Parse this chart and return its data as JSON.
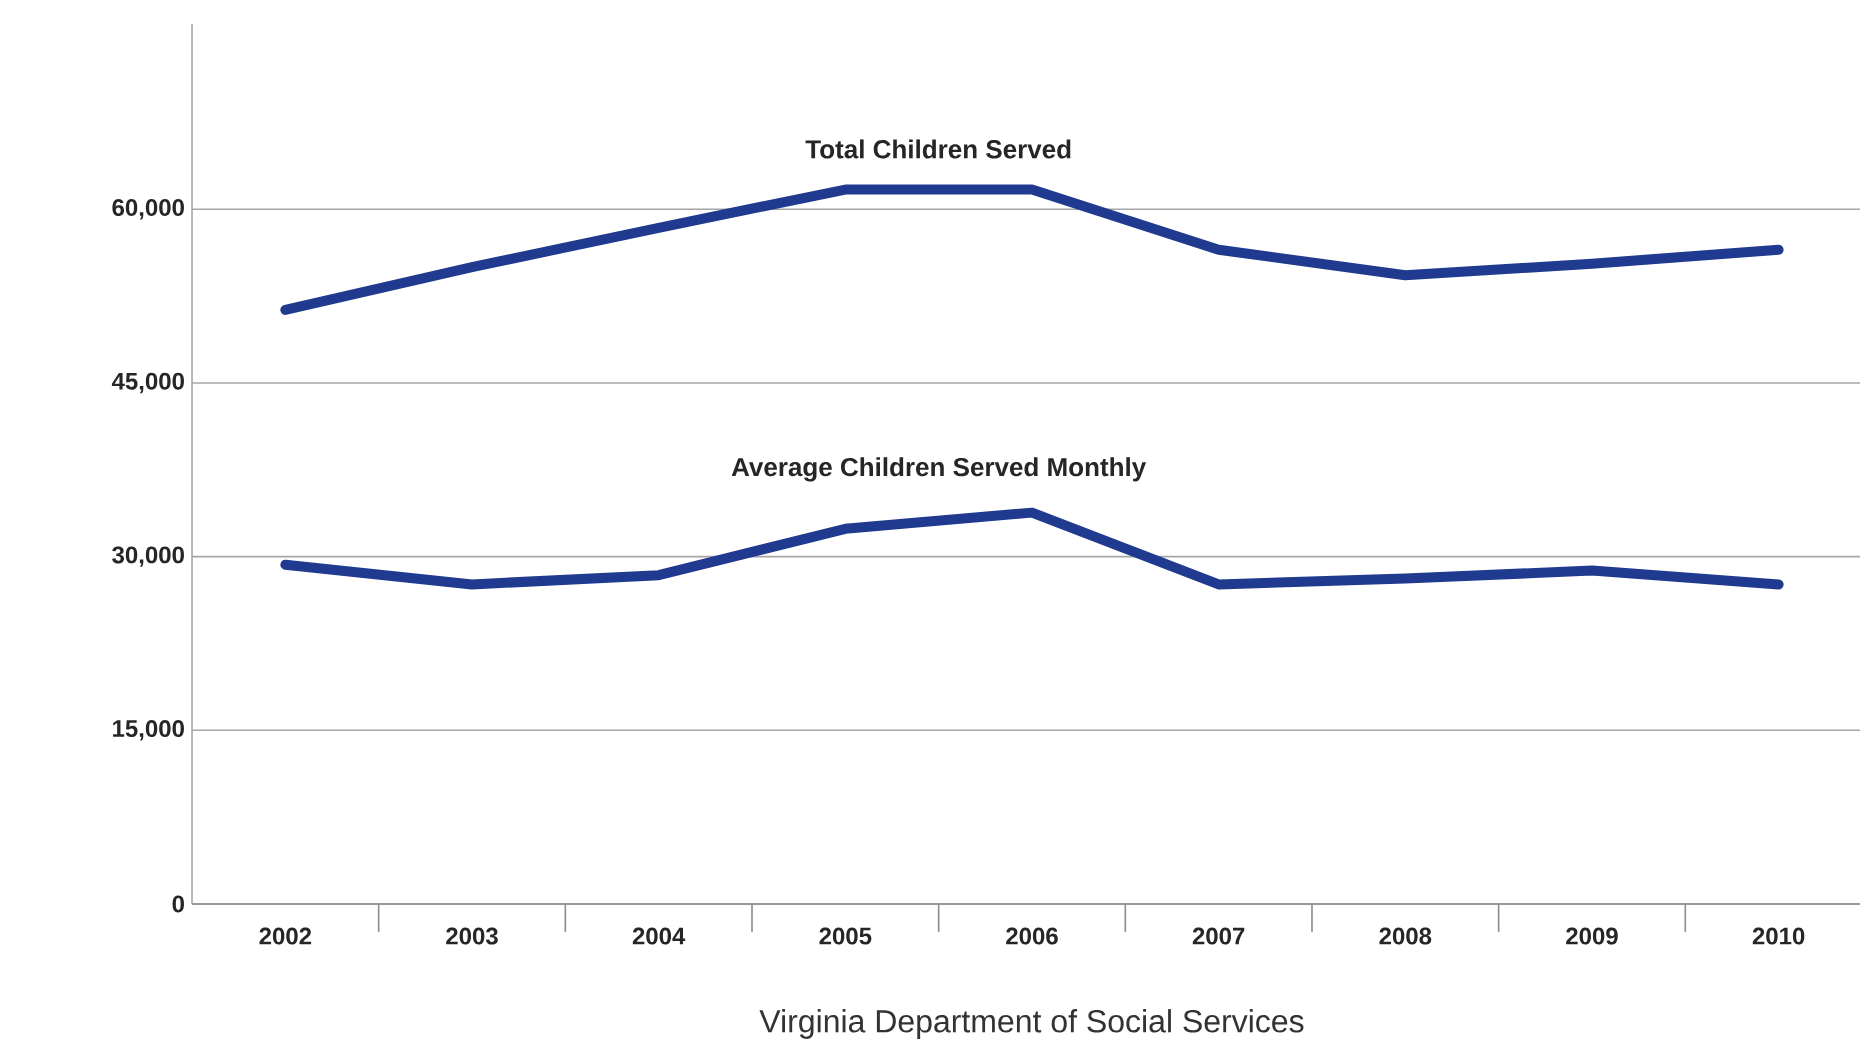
{
  "chart_data": {
    "type": "line",
    "categories": [
      "2002",
      "2003",
      "2004",
      "2005",
      "2006",
      "2007",
      "2008",
      "2009",
      "2010"
    ],
    "series": [
      {
        "name": "Total Children Served",
        "color": "#1f3a8f",
        "values": [
          51300,
          55000,
          58400,
          61700,
          61700,
          56500,
          54300,
          55300,
          56500
        ]
      },
      {
        "name": "Average Children Served Monthly",
        "color": "#1f3a8f",
        "values": [
          29300,
          27600,
          28400,
          32400,
          33800,
          27600,
          28100,
          28800,
          27600
        ]
      }
    ],
    "ylim": [
      0,
      76000
    ],
    "yticks": [
      {
        "value": 0,
        "label": "0"
      },
      {
        "value": 15000,
        "label": "15,000"
      },
      {
        "value": 30000,
        "label": "30,000"
      },
      {
        "value": 45000,
        "label": "45,000"
      },
      {
        "value": 60000,
        "label": "60,000"
      }
    ],
    "grid": "y",
    "legend": false,
    "marker": "none",
    "line_style": "solid",
    "annotations": [
      "Virginia Department of Social Services"
    ]
  }
}
